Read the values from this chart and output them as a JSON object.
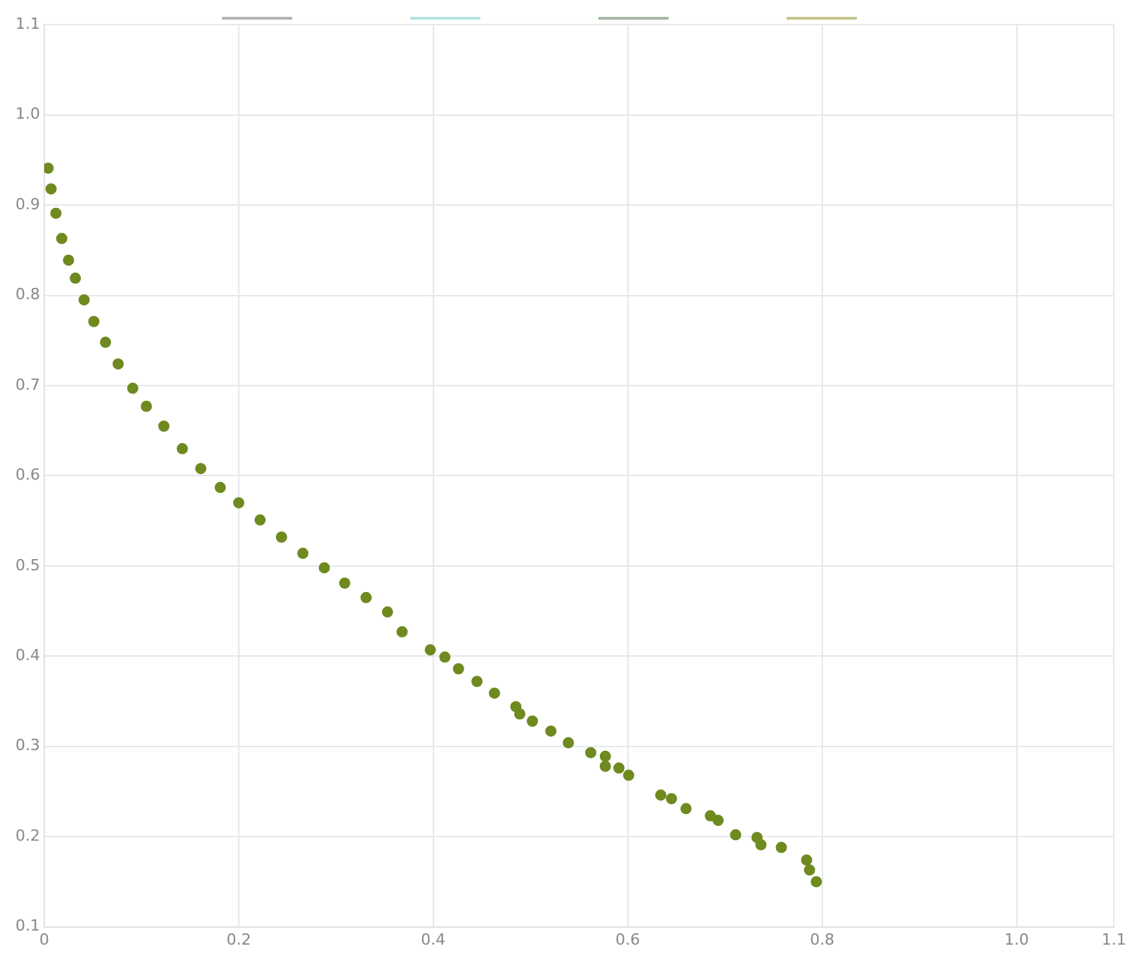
{
  "chart_data": {
    "type": "scatter",
    "grid": true,
    "marker": "circle",
    "xlim": [
      0,
      1.1
    ],
    "ylim": [
      0.1,
      1.1
    ],
    "xticks": [
      0,
      0.2,
      0.4,
      0.6,
      0.8,
      {
        "value": 1,
        "label": "1.0"
      },
      1.1
    ],
    "yticks": [
      0.1,
      0.2,
      0.3,
      0.4,
      0.5,
      0.6,
      0.7,
      0.8,
      0.9,
      {
        "value": 1,
        "label": "1.0"
      },
      1.1
    ],
    "series": [
      {
        "color": "#6f8a1f",
        "x": [
          0.004,
          0.007,
          0.012,
          0.018,
          0.025,
          0.032,
          0.041,
          0.051,
          0.063,
          0.076,
          0.091,
          0.105,
          0.123,
          0.142,
          0.161,
          0.181,
          0.2,
          0.222,
          0.244,
          0.266,
          0.288,
          0.309,
          0.331,
          0.353,
          0.368,
          0.397,
          0.412,
          0.426,
          0.445,
          0.463,
          0.485,
          0.489,
          0.502,
          0.521,
          0.539,
          0.562,
          0.577,
          0.577,
          0.591,
          0.601,
          0.634,
          0.645,
          0.66,
          0.685,
          0.693,
          0.711,
          0.733,
          0.737,
          0.758,
          0.784,
          0.787,
          0.794
        ],
        "values": [
          0.941,
          0.918,
          0.891,
          0.863,
          0.839,
          0.819,
          0.795,
          0.771,
          0.748,
          0.724,
          0.697,
          0.677,
          0.655,
          0.63,
          0.608,
          0.587,
          0.57,
          0.551,
          0.532,
          0.514,
          0.498,
          0.481,
          0.465,
          0.449,
          0.427,
          0.407,
          0.399,
          0.386,
          0.372,
          0.359,
          0.344,
          0.336,
          0.328,
          0.317,
          0.304,
          0.293,
          0.289,
          0.278,
          0.276,
          0.268,
          0.246,
          0.242,
          0.231,
          0.223,
          0.218,
          0.202,
          0.199,
          0.191,
          0.188,
          0.174,
          0.163,
          0.15
        ]
      }
    ]
  }
}
